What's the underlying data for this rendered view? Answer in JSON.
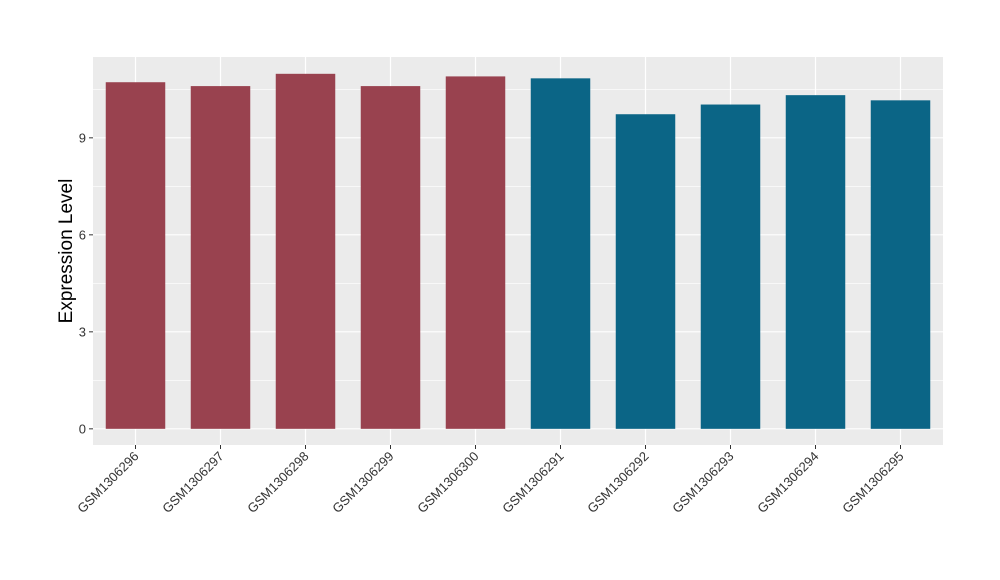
{
  "chart_data": {
    "type": "bar",
    "title": "",
    "xlabel": "",
    "ylabel": "Expression Level",
    "categories": [
      "GSM1306296",
      "GSM1306297",
      "GSM1306298",
      "GSM1306299",
      "GSM1306300",
      "GSM1306291",
      "GSM1306292",
      "GSM1306293",
      "GSM1306294",
      "GSM1306295"
    ],
    "values": [
      10.72,
      10.6,
      10.98,
      10.6,
      10.9,
      10.84,
      9.73,
      10.03,
      10.32,
      10.16
    ],
    "bar_colors": [
      "#99424f",
      "#99424f",
      "#99424f",
      "#99424f",
      "#99424f",
      "#0b6586",
      "#0b6586",
      "#0b6586",
      "#0b6586",
      "#0b6586"
    ],
    "ylim": [
      -0.5,
      11.5
    ],
    "yticks": [
      0,
      3,
      6,
      9
    ],
    "grid": true,
    "legend": "none",
    "panel_background": "#ebebeb",
    "gridline_color": "#ffffff"
  }
}
